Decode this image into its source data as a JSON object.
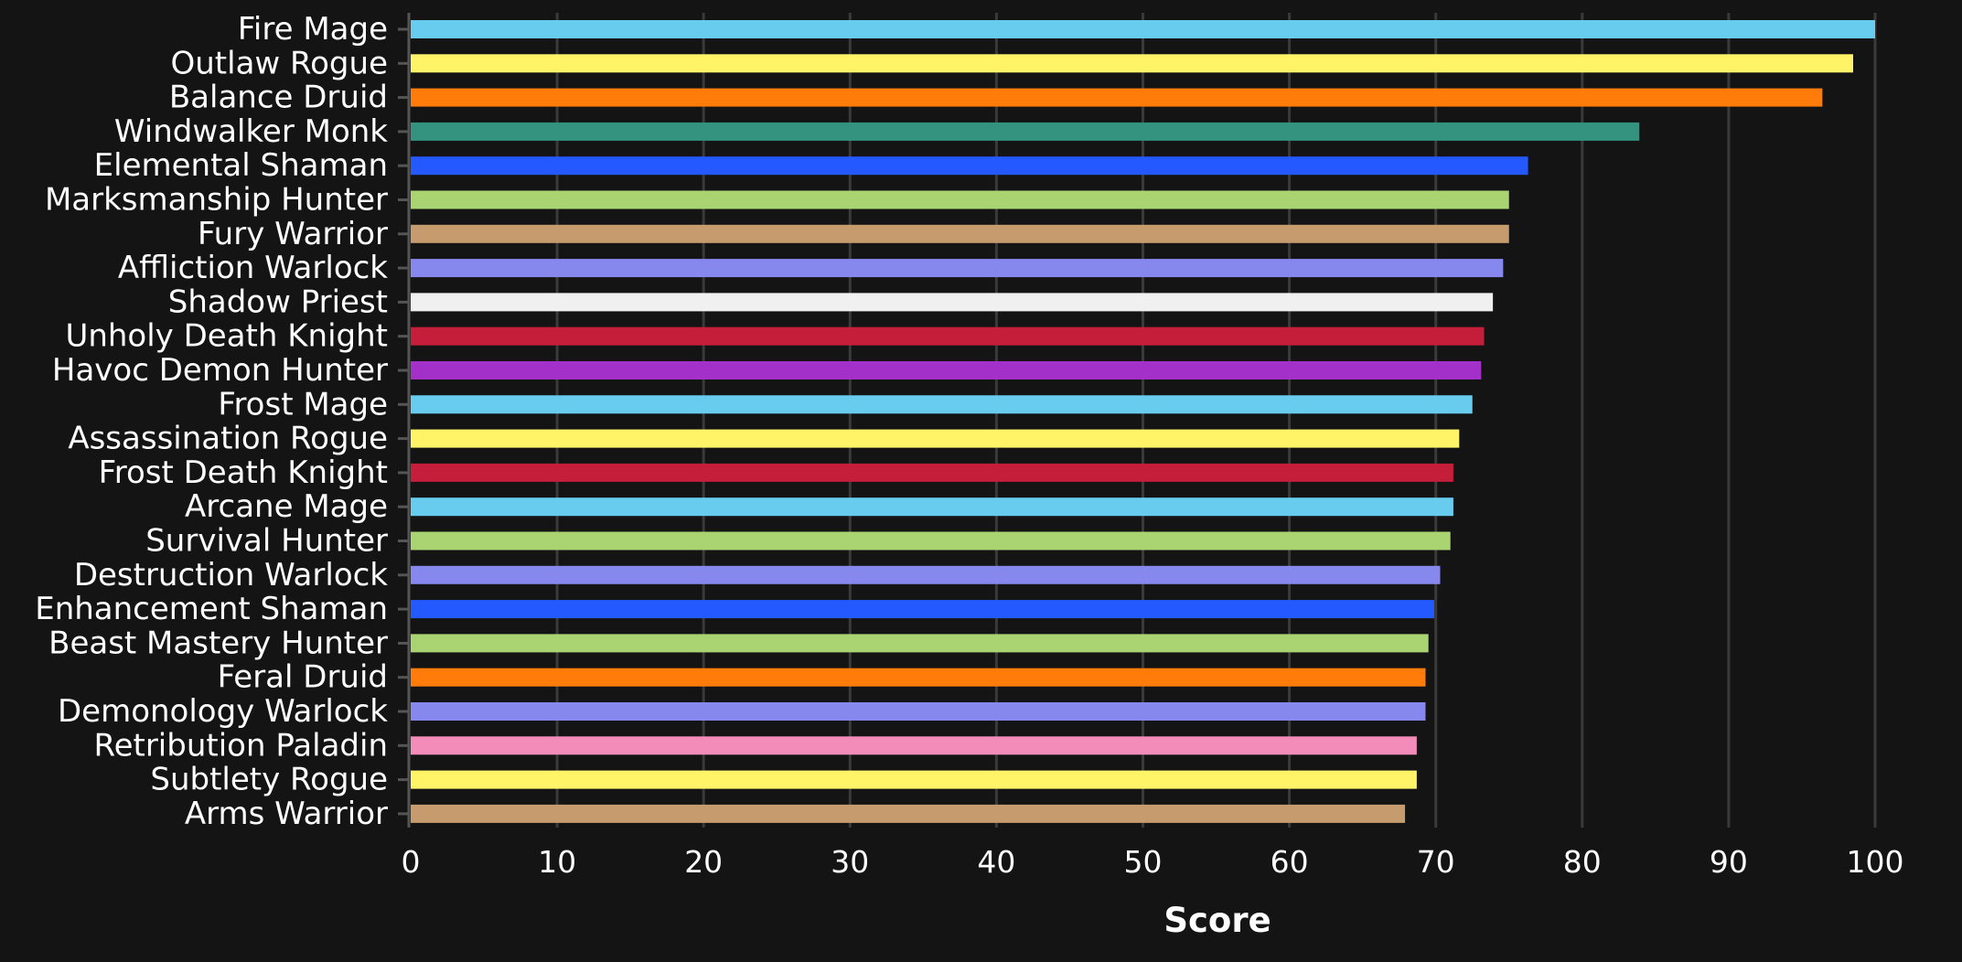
{
  "chart_data": {
    "type": "bar",
    "orientation": "horizontal",
    "xlabel": "Score",
    "xlim": [
      0,
      100
    ],
    "x_ticks": [
      0,
      10,
      20,
      30,
      40,
      50,
      60,
      70,
      80,
      90,
      100
    ],
    "grid": true,
    "background": "#141414",
    "categories": [
      "Fire Mage",
      "Outlaw Rogue",
      "Balance Druid",
      "Windwalker Monk",
      "Elemental Shaman",
      "Marksmanship Hunter",
      "Fury Warrior",
      "Affliction Warlock",
      "Shadow Priest",
      "Unholy Death Knight",
      "Havoc Demon Hunter",
      "Frost Mage",
      "Assassination Rogue",
      "Frost Death Knight",
      "Arcane Mage",
      "Survival Hunter",
      "Destruction Warlock",
      "Enhancement Shaman",
      "Beast Mastery Hunter",
      "Feral Druid",
      "Demonology Warlock",
      "Retribution Paladin",
      "Subtlety Rogue",
      "Arms Warrior"
    ],
    "values": [
      100,
      98.5,
      96.4,
      83.9,
      76.3,
      75.0,
      75.0,
      74.6,
      73.9,
      73.3,
      73.1,
      72.5,
      71.6,
      71.2,
      71.2,
      71.0,
      70.3,
      69.9,
      69.5,
      69.3,
      69.3,
      68.7,
      68.7,
      67.9
    ],
    "colors": [
      "#68ccef",
      "#fff468",
      "#ff7c0a",
      "#33937f",
      "#2359ff",
      "#aad372",
      "#c69b6d",
      "#8788ee",
      "#f0f0f0",
      "#c41e3b",
      "#a330c9",
      "#68ccef",
      "#fff468",
      "#c41e3b",
      "#68ccef",
      "#aad372",
      "#8788ee",
      "#2359ff",
      "#aad372",
      "#ff7c0a",
      "#8788ee",
      "#f48cba",
      "#fff468",
      "#c69b6d"
    ]
  }
}
